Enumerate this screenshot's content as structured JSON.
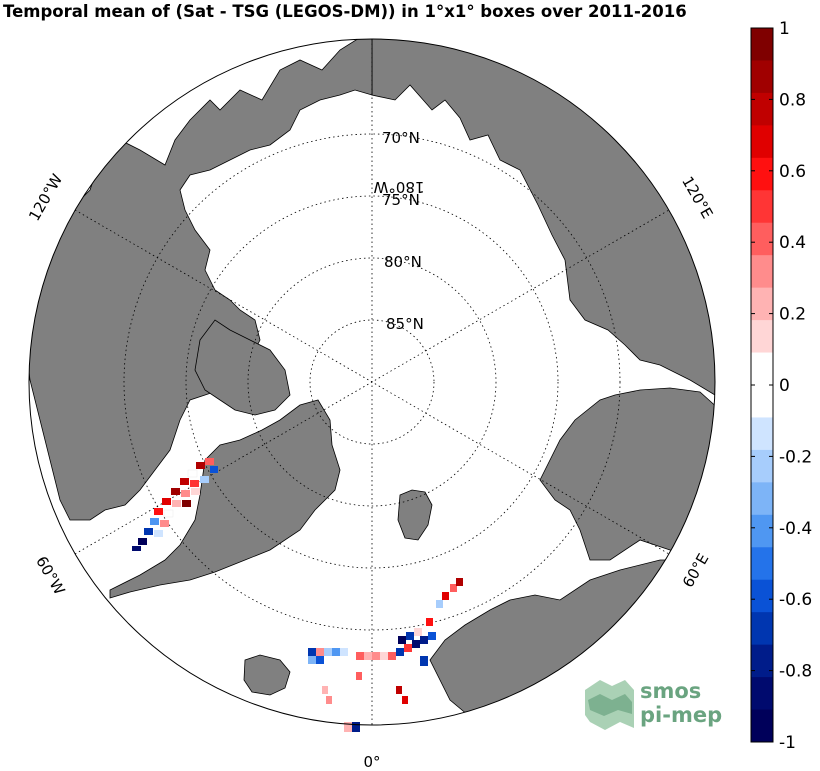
{
  "title": "Temporal mean of (Sat - TSG (LEGOS-DM)) in 1°x1° boxes over 2011-2016",
  "map": {
    "projection": "north polar stereographic",
    "lat_labels": [
      "70°N",
      "75°N",
      "80°N",
      "85°N"
    ],
    "lon_labels": {
      "top": "180°W",
      "bottom": "0°",
      "left_upper": "120°W",
      "left_lower": "60°W",
      "right_upper": "120°E",
      "right_lower": "60°E"
    },
    "land_color": "#808080",
    "ocean_color": "#ffffff"
  },
  "colorbar": {
    "min": -1,
    "max": 1,
    "tick_labels": [
      "1",
      "0.8",
      "0.6",
      "0.4",
      "0.2",
      "0",
      "-0.2",
      "-0.4",
      "-0.6",
      "-0.8",
      "-1"
    ],
    "colors_top_to_bottom": [
      "#7f0000",
      "#a00000",
      "#c00000",
      "#e00000",
      "#ff1010",
      "#ff3535",
      "#ff5e5e",
      "#ff8c8c",
      "#ffb3b3",
      "#ffd6d6",
      "#ffffff",
      "#ffffff",
      "#cfe4ff",
      "#a7cdfc",
      "#7db4f7",
      "#4f97f2",
      "#2473ea",
      "#0a52d6",
      "#0036b0",
      "#001c8a",
      "#000a6e",
      "#00005a"
    ]
  },
  "logo": {
    "line1": "smos",
    "line2": "pi-mep"
  }
}
